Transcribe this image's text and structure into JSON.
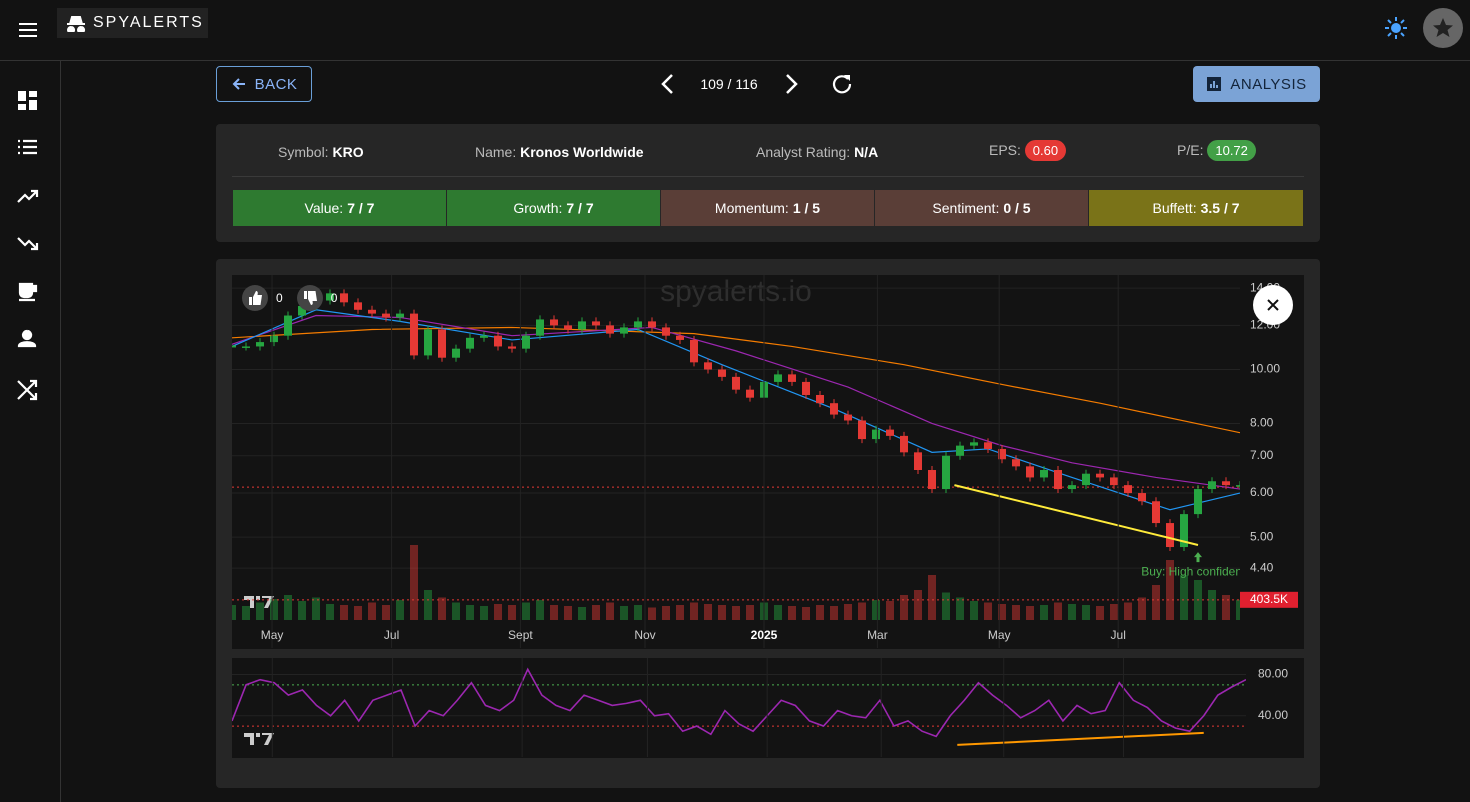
{
  "header": {
    "logo": "SPYALERTS"
  },
  "nav": {
    "back": "BACK",
    "position": "109 / 116",
    "analysis": "ANALYSIS"
  },
  "info": {
    "fields": [
      {
        "label": "Symbol:",
        "value": "KRO"
      },
      {
        "label": "Name:",
        "value": "Kronos Worldwide"
      },
      {
        "label": "Analyst Rating:",
        "value": "N/A"
      },
      {
        "label": "EPS:",
        "value": "0.60"
      },
      {
        "label": "P/E:",
        "value": "10.72"
      }
    ],
    "scores": [
      {
        "label": "Value:",
        "value": "7 / 7"
      },
      {
        "label": "Growth:",
        "value": "7 / 7"
      },
      {
        "label": "Momentum:",
        "value": "1 / 5"
      },
      {
        "label": "Sentiment:",
        "value": "0 / 5"
      },
      {
        "label": "Buffett:",
        "value": "3.5 / 7"
      }
    ]
  },
  "likes": {
    "up": 0,
    "down": 0
  },
  "chart_data": [
    {
      "type": "candlestick",
      "watermark": "spyalerts.io",
      "up_color": "#26a641",
      "down_color": "#e53935",
      "values": [
        11.0,
        11.0,
        11.2,
        11.5,
        12.5,
        13.0,
        13.3,
        13.7,
        13.2,
        12.8,
        12.6,
        12.4,
        12.6,
        10.6,
        11.8,
        10.5,
        10.9,
        11.4,
        11.5,
        11.0,
        10.9,
        11.5,
        12.3,
        12.0,
        11.8,
        12.2,
        12.0,
        11.6,
        11.9,
        12.2,
        11.9,
        11.5,
        11.3,
        10.3,
        10.0,
        9.7,
        9.2,
        8.9,
        9.5,
        9.8,
        9.5,
        9.0,
        8.7,
        8.3,
        8.1,
        7.5,
        7.8,
        7.6,
        7.1,
        6.6,
        6.1,
        7.0,
        7.3,
        7.4,
        7.2,
        6.9,
        6.7,
        6.4,
        6.6,
        6.1,
        6.2,
        6.5,
        6.4,
        6.2,
        6.0,
        5.8,
        5.3,
        4.8,
        5.5,
        6.1,
        6.3,
        6.2,
        6.2
      ],
      "overlays": [
        {
          "color": "#f57c00",
          "x": [
            0,
            10,
            20,
            33,
            40,
            48,
            55,
            62,
            72
          ],
          "values": [
            11.4,
            11.8,
            11.9,
            11.6,
            11.0,
            10.2,
            9.4,
            8.7,
            7.7
          ]
        },
        {
          "color": "#9c27b0",
          "x": [
            0,
            6,
            12,
            20,
            30,
            36,
            44,
            50,
            55,
            60,
            66,
            72
          ],
          "values": [
            11.1,
            12.5,
            12.4,
            11.5,
            11.9,
            10.8,
            9.3,
            8.0,
            7.3,
            6.8,
            6.4,
            6.1
          ]
        },
        {
          "color": "#2196f3",
          "x": [
            0,
            6,
            12,
            20,
            29,
            35,
            43,
            50,
            54,
            60,
            67,
            72
          ],
          "values": [
            11.0,
            12.8,
            12.2,
            11.3,
            11.8,
            10.2,
            8.5,
            7.1,
            7.2,
            6.4,
            5.6,
            6.0
          ]
        }
      ],
      "trendline": {
        "color": "#ffeb3b",
        "x": [
          51.6,
          69
        ],
        "values": [
          6.2,
          4.84
        ]
      },
      "price_line": 6.15,
      "price_line_color": "#e53935",
      "signal": {
        "text": "Buy: High confidence",
        "x": 69,
        "value": 4.7,
        "color": "#4caf50"
      },
      "volume": {
        "ylim": [
          0,
          1600000
        ],
        "values": [
          300000,
          280000,
          350000,
          420000,
          500000,
          380000,
          450000,
          320000,
          300000,
          280000,
          350000,
          300000,
          400000,
          1500000,
          600000,
          450000,
          350000,
          300000,
          280000,
          320000,
          300000,
          350000,
          400000,
          300000,
          280000,
          260000,
          300000,
          350000,
          280000,
          300000,
          250000,
          280000,
          300000,
          350000,
          320000,
          300000,
          280000,
          300000,
          350000,
          300000,
          280000,
          260000,
          300000,
          280000,
          320000,
          350000,
          400000,
          380000,
          500000,
          600000,
          900000,
          550000,
          450000,
          380000,
          350000,
          320000,
          300000,
          280000,
          300000,
          350000,
          320000,
          300000,
          280000,
          320000,
          350000,
          450000,
          700000,
          1200000,
          900000,
          800000,
          600000,
          500000,
          403500
        ],
        "last_label": {
          "value": 403500,
          "label": "403.5K"
        }
      },
      "xlim": [
        0,
        72
      ],
      "xticks": [
        {
          "value": 2.86,
          "label": "May"
        },
        {
          "value": 11.4,
          "label": "Jul"
        },
        {
          "value": 20.6,
          "label": "Sept"
        },
        {
          "value": 29.5,
          "label": "Nov"
        },
        {
          "value": 38,
          "label": "2025"
        },
        {
          "value": 46.1,
          "label": "Mar"
        },
        {
          "value": 54.8,
          "label": "May"
        },
        {
          "value": 63.3,
          "label": "Jul"
        }
      ],
      "bold_xticks": [
        4
      ],
      "ylim": [
        3.55,
        14.78
      ],
      "log": true,
      "yticks": [
        {
          "value": 4.4,
          "label": "4.40"
        },
        {
          "value": 5,
          "label": "5.00"
        },
        {
          "value": 6,
          "label": "6.00"
        },
        {
          "value": 7,
          "label": "7.00"
        },
        {
          "value": 8,
          "label": "8.00"
        },
        {
          "value": 10,
          "label": "10.00"
        },
        {
          "value": 12,
          "label": "12.00"
        },
        {
          "value": 14,
          "label": "14.00"
        }
      ],
      "grid": true
    },
    {
      "type": "line",
      "color": "#9c27b0",
      "values": [
        35,
        70,
        75,
        72,
        60,
        65,
        50,
        40,
        55,
        35,
        55,
        60,
        65,
        30,
        45,
        40,
        55,
        72,
        50,
        45,
        55,
        85,
        60,
        50,
        45,
        60,
        55,
        50,
        52,
        55,
        40,
        42,
        25,
        30,
        22,
        45,
        32,
        25,
        40,
        55,
        50,
        35,
        30,
        45,
        40,
        38,
        55,
        30,
        35,
        25,
        20,
        40,
        55,
        72,
        60,
        50,
        38,
        45,
        55,
        35,
        50,
        42,
        45,
        72,
        55,
        48,
        35,
        28,
        25,
        40,
        60,
        68,
        75
      ],
      "levels": [
        {
          "value": 70,
          "color": "#4caf50"
        },
        {
          "value": 30,
          "color": "#e53935"
        }
      ],
      "trendline": {
        "color": "#ff9800",
        "x": [
          51.5,
          69
        ],
        "values": [
          11.7,
          23.4
        ]
      },
      "xlim": [
        0,
        72
      ],
      "xticks": [
        2.86,
        11.4,
        20.6,
        29.5,
        38,
        46.1,
        54.8,
        63.3
      ],
      "ylim": [
        0,
        96
      ],
      "yticks": [
        {
          "value": 40,
          "label": "40.00"
        },
        {
          "value": 80,
          "label": "80.00"
        }
      ],
      "grid": true
    }
  ]
}
